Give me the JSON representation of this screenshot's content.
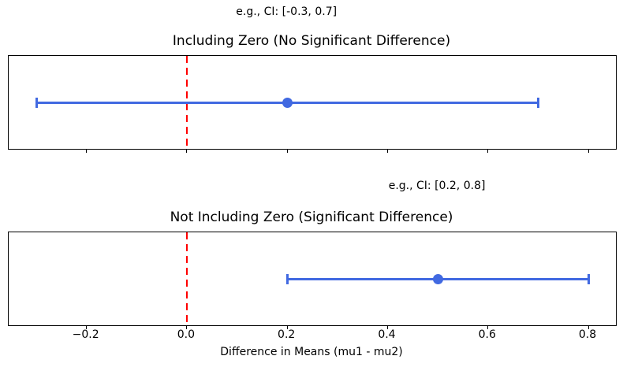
{
  "chart_data": [
    {
      "type": "errorbar",
      "title": "Including Zero (No Significant Difference)",
      "annotation": "e.g., CI: [-0.3, 0.7]",
      "point_estimate": 0.2,
      "ci": [
        -0.3,
        0.7
      ],
      "zero_line": 0.0,
      "xlim": [
        -0.355,
        0.855
      ],
      "xticks": [
        -0.2,
        0.0,
        0.2,
        0.4,
        0.6,
        0.8
      ],
      "show_xtick_labels": false,
      "xlabel": ""
    },
    {
      "type": "errorbar",
      "title": "Not Including Zero (Significant Difference)",
      "annotation": "e.g., CI: [0.2, 0.8]",
      "point_estimate": 0.5,
      "ci": [
        0.2,
        0.8
      ],
      "zero_line": 0.0,
      "xlim": [
        -0.355,
        0.855
      ],
      "xticks": [
        -0.2,
        0.0,
        0.2,
        0.4,
        0.6,
        0.8
      ],
      "show_xtick_labels": true,
      "xlabel": "Difference in Means (mu1 - mu2)"
    }
  ],
  "colors": {
    "errorbar": "#4169e1",
    "zero_line": "#ff0000",
    "axis": "#000000",
    "text": "#000000",
    "background": "#ffffff"
  }
}
